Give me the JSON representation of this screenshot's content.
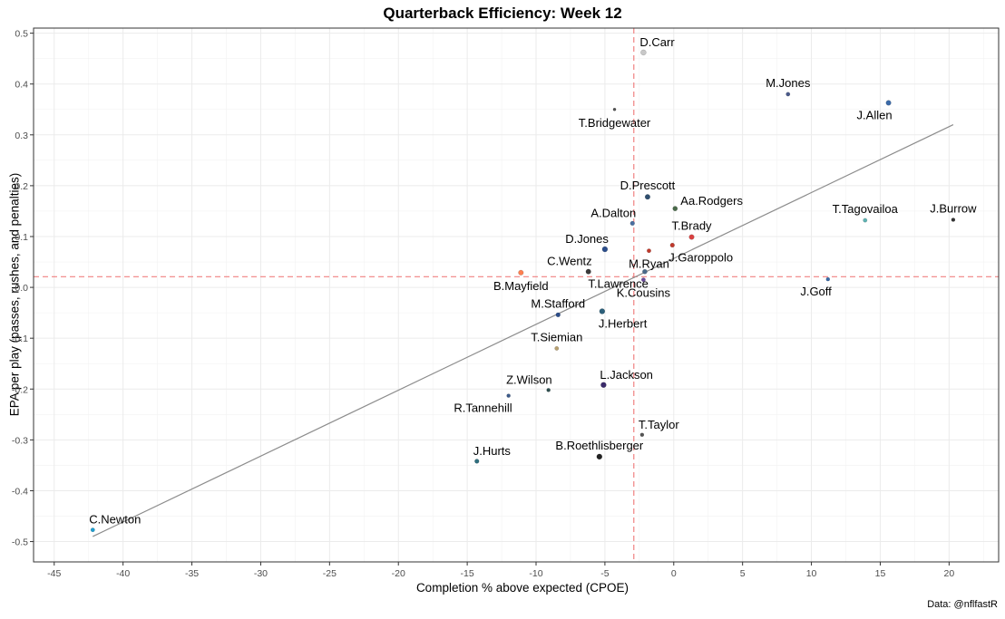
{
  "chart_data": {
    "type": "scatter",
    "title": "Quarterback Efficiency: Week 12",
    "xlabel": "Completion % above expected (CPOE)",
    "ylabel": "EPA per play (passes, rushes, and penalties)",
    "caption": "Data: @nflfastR",
    "xlim": [
      -46.5,
      23.6
    ],
    "ylim": [
      -0.54,
      0.51
    ],
    "x_ticks": [
      -45,
      -40,
      -35,
      -30,
      -25,
      -20,
      -15,
      -10,
      -5,
      0,
      5,
      10,
      15,
      20
    ],
    "y_ticks": [
      -0.5,
      -0.4,
      -0.3,
      -0.2,
      -0.1,
      0.0,
      0.1,
      0.2,
      0.3,
      0.4,
      0.5
    ],
    "grid": true,
    "reference_lines": {
      "vline_x": -2.9,
      "hline_y": 0.021,
      "color": "#f08080"
    },
    "trend_line": {
      "x": [
        -42.2,
        20.3
      ],
      "y": [
        -0.49,
        0.32
      ]
    },
    "points": [
      {
        "name": "D.Carr",
        "x": -2.2,
        "y": 0.462,
        "color": "#c8c8c8",
        "size": 3.0,
        "label_pos": "above-right"
      },
      {
        "name": "M.Jones",
        "x": 8.3,
        "y": 0.38,
        "color": "#4a5a8a",
        "size": 2.2,
        "label_pos": "above"
      },
      {
        "name": "J.Allen",
        "x": 15.6,
        "y": 0.363,
        "color": "#3b6aa8",
        "size": 2.8,
        "label_pos": "below-left"
      },
      {
        "name": "T.Bridgewater",
        "x": -4.3,
        "y": 0.35,
        "color": "#555555",
        "size": 1.6,
        "label_pos": "below"
      },
      {
        "name": "D.Prescott",
        "x": -1.9,
        "y": 0.178,
        "color": "#2f4f6f",
        "size": 2.8,
        "label_pos": "above"
      },
      {
        "name": "Aa.Rodgers",
        "x": 0.1,
        "y": 0.155,
        "color": "#4a6a4a",
        "size": 2.6,
        "label_pos": "right"
      },
      {
        "name": "T.Tagovailoa",
        "x": 13.9,
        "y": 0.132,
        "color": "#5fb3b3",
        "size": 2.2,
        "label_pos": "above"
      },
      {
        "name": "J.Burrow",
        "x": 20.3,
        "y": 0.133,
        "color": "#333333",
        "size": 2.0,
        "label_pos": "above"
      },
      {
        "name": "A.Dalton",
        "x": -3.0,
        "y": 0.126,
        "color": "#4a6fa0",
        "size": 2.4,
        "label_pos": "above-left"
      },
      {
        "name": "T.Brady",
        "x": 1.3,
        "y": 0.099,
        "color": "#d94040",
        "size": 2.8,
        "label_pos": "above"
      },
      {
        "name": "D.Jones",
        "x": -5.0,
        "y": 0.075,
        "color": "#2b4d8a",
        "size": 3.0,
        "label_pos": "above-left"
      },
      {
        "name": "J.Garoppolo",
        "x": -0.1,
        "y": 0.083,
        "color": "#c0392b",
        "size": 2.4,
        "label_pos": "below-right"
      },
      {
        "name": "M.Ryan",
        "x": -1.8,
        "y": 0.072,
        "color": "#c0392b",
        "size": 2.2,
        "label_pos": "below"
      },
      {
        "name": "C.Wentz",
        "x": -6.2,
        "y": 0.031,
        "color": "#3a3a3a",
        "size": 2.8,
        "label_pos": "above-left"
      },
      {
        "name": "B.Mayfield",
        "x": -11.1,
        "y": 0.029,
        "color": "#ff7f50",
        "size": 2.8,
        "label_pos": "below"
      },
      {
        "name": "T.Lawrence",
        "x": -2.1,
        "y": 0.031,
        "color": "#4a6a8a",
        "size": 2.6,
        "label_pos": "below-left"
      },
      {
        "name": "K.Cousins",
        "x": -2.2,
        "y": 0.015,
        "color": "#6a4a9a",
        "size": 2.2,
        "label_pos": "below"
      },
      {
        "name": "J.Goff",
        "x": 11.2,
        "y": 0.016,
        "color": "#3b6aa8",
        "size": 2.0,
        "label_pos": "below-left"
      },
      {
        "name": "M.Stafford",
        "x": -8.4,
        "y": -0.054,
        "color": "#2b4d8a",
        "size": 2.4,
        "label_pos": "above"
      },
      {
        "name": "J.Herbert",
        "x": -5.2,
        "y": -0.047,
        "color": "#2b5f7a",
        "size": 3.0,
        "label_pos": "below-right"
      },
      {
        "name": "T.Siemian",
        "x": -8.5,
        "y": -0.12,
        "color": "#b8a070",
        "size": 2.2,
        "label_pos": "above"
      },
      {
        "name": "L.Jackson",
        "x": -5.1,
        "y": -0.192,
        "color": "#3a2a6a",
        "size": 3.0,
        "label_pos": "above-right"
      },
      {
        "name": "Z.Wilson",
        "x": -9.1,
        "y": -0.202,
        "color": "#2f4f4f",
        "size": 2.0,
        "label_pos": "above-left"
      },
      {
        "name": "R.Tannehill",
        "x": -12.0,
        "y": -0.213,
        "color": "#3b5a8a",
        "size": 2.0,
        "label_pos": "below-left"
      },
      {
        "name": "T.Taylor",
        "x": -2.3,
        "y": -0.29,
        "color": "#555555",
        "size": 2.0,
        "label_pos": "above-right"
      },
      {
        "name": "B.Roethlisberger",
        "x": -5.4,
        "y": -0.333,
        "color": "#222222",
        "size": 3.0,
        "label_pos": "above"
      },
      {
        "name": "J.Hurts",
        "x": -14.3,
        "y": -0.342,
        "color": "#2f6f7f",
        "size": 2.4,
        "label_pos": "above-right"
      },
      {
        "name": "C.Newton",
        "x": -42.2,
        "y": -0.477,
        "color": "#1f9fd0",
        "size": 2.2,
        "label_pos": "above-right"
      }
    ]
  }
}
